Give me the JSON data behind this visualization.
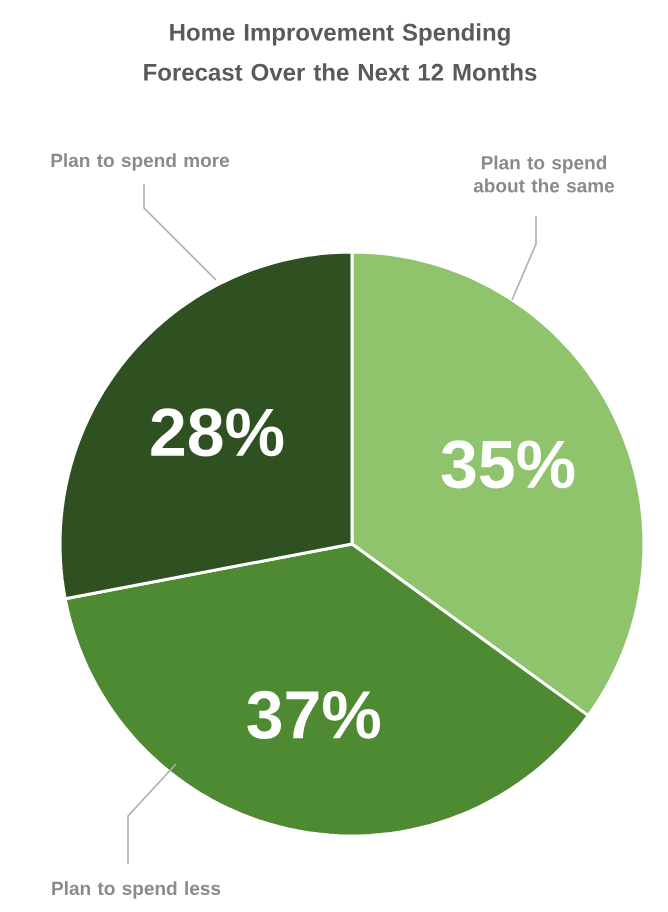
{
  "chart_data": {
    "type": "pie",
    "title": "Home Improvement Spending Forecast Over the Next 12 Months",
    "categories": [
      "Plan to spend about the same",
      "Plan to spend less",
      "Plan to spend more"
    ],
    "values": [
      35,
      37,
      28
    ],
    "value_labels": [
      "35%",
      "37%",
      "28%"
    ],
    "colors": [
      "#8fc46c",
      "#4e8a31",
      "#2f5121"
    ]
  }
}
